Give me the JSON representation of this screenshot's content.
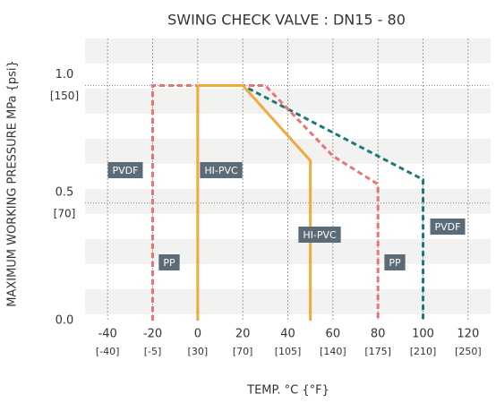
{
  "chart_data": {
    "type": "line",
    "title": "SWING CHECK VALVE : DN15 - 80",
    "x_label": "TEMP. °C {°F}",
    "y_label": "MAXIMUM WORKING PRESSURE  MPa {psi}",
    "xlim": [
      -50,
      130
    ],
    "ylim": [
      0,
      1.2
    ],
    "xticks": [
      {
        "value": -40,
        "label": "-40",
        "sublabel": "[-40]"
      },
      {
        "value": -20,
        "label": "-20",
        "sublabel": "[-5]"
      },
      {
        "value": 0,
        "label": "0",
        "sublabel": "[30]"
      },
      {
        "value": 20,
        "label": "20",
        "sublabel": "[70]"
      },
      {
        "value": 40,
        "label": "40",
        "sublabel": "[105]"
      },
      {
        "value": 60,
        "label": "60",
        "sublabel": "[140]"
      },
      {
        "value": 80,
        "label": "80",
        "sublabel": "[175]"
      },
      {
        "value": 100,
        "label": "100",
        "sublabel": "[210]"
      },
      {
        "value": 120,
        "label": "120",
        "sublabel": "[250]"
      }
    ],
    "yticks": [
      {
        "value": 1.0,
        "label": "1.0",
        "sublabel": "[150]"
      },
      {
        "value": 0.5,
        "label": "0.5",
        "sublabel": "[70]"
      },
      {
        "value": 0,
        "label": "0.0"
      }
    ],
    "series": [
      {
        "name": "PVDF",
        "color": "#1b7a78",
        "style": "dashed",
        "x": [
          -20,
          -20,
          20,
          100,
          100
        ],
        "values": [
          0,
          1.0,
          1.0,
          0.6,
          0
        ]
      },
      {
        "name": "PP",
        "color": "#ea7474",
        "style": "dashed",
        "x": [
          -20,
          -20,
          30,
          60,
          80,
          80
        ],
        "values": [
          0,
          1.0,
          1.0,
          0.7,
          0.58,
          0
        ]
      },
      {
        "name": "HI-PVC",
        "color": "#f2a93b",
        "style": "solid",
        "x": [
          0,
          0,
          20,
          50,
          50
        ],
        "values": [
          0,
          1.0,
          1.0,
          0.68,
          0
        ]
      }
    ],
    "annotations": [
      "PVDF",
      "HI-PVC",
      "PP",
      "HI-PVC",
      "PP",
      "PVDF"
    ]
  }
}
